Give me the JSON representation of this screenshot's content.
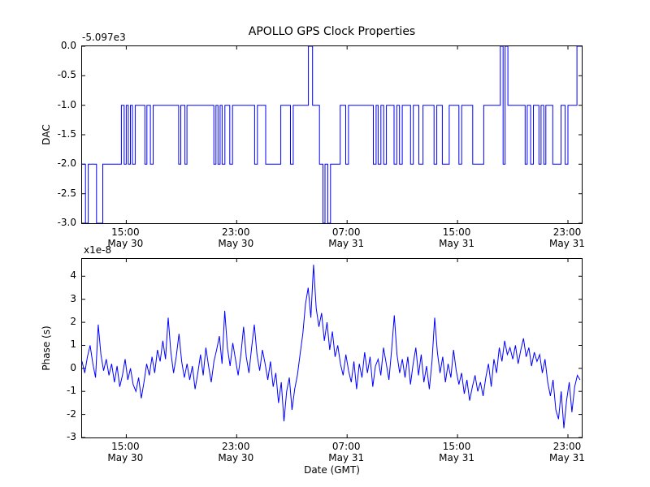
{
  "background": "#ffffff",
  "chart_data": [
    {
      "type": "line",
      "subplot": "top",
      "title": "APOLLO GPS Clock Properties",
      "ylabel": "DAC",
      "y_offset_label": "-5.097e3",
      "line_color": "#0000ff",
      "xlim": [
        0,
        36.2
      ],
      "ylim": [
        -3,
        0
      ],
      "grid": false,
      "legend": "none",
      "yticks": [
        {
          "v": 0,
          "label": "0.0"
        },
        {
          "v": -0.5,
          "label": "-0.5"
        },
        {
          "v": -1,
          "label": "-1.0"
        },
        {
          "v": -1.5,
          "label": "-1.5"
        },
        {
          "v": -2,
          "label": "-2.0"
        },
        {
          "v": -2.5,
          "label": "-2.5"
        },
        {
          "v": -3,
          "label": "-3.0"
        }
      ],
      "xticks": [
        {
          "v": 3.2,
          "time": "15:00",
          "date": "May 30"
        },
        {
          "v": 11.2,
          "time": "23:00",
          "date": "May 30"
        },
        {
          "v": 19.2,
          "time": "07:00",
          "date": "May 31"
        },
        {
          "v": 27.2,
          "time": "15:00",
          "date": "May 31"
        },
        {
          "v": 35.2,
          "time": "23:00",
          "date": "May 31"
        }
      ],
      "step_points": [
        [
          0.0,
          -2
        ],
        [
          0.25,
          -3
        ],
        [
          0.45,
          -2
        ],
        [
          1.05,
          -3
        ],
        [
          1.5,
          -2
        ],
        [
          2.85,
          -1
        ],
        [
          3.05,
          -2
        ],
        [
          3.2,
          -1
        ],
        [
          3.35,
          -2
        ],
        [
          3.5,
          -1
        ],
        [
          3.65,
          -2
        ],
        [
          3.85,
          -1
        ],
        [
          4.55,
          -2
        ],
        [
          4.7,
          -1
        ],
        [
          4.95,
          -2
        ],
        [
          5.15,
          -1
        ],
        [
          7.0,
          -2
        ],
        [
          7.15,
          -1
        ],
        [
          7.45,
          -2
        ],
        [
          7.6,
          -1
        ],
        [
          9.55,
          -2
        ],
        [
          9.7,
          -1
        ],
        [
          9.85,
          -2
        ],
        [
          10.0,
          -1
        ],
        [
          10.15,
          -2
        ],
        [
          10.35,
          -1
        ],
        [
          10.7,
          -2
        ],
        [
          10.9,
          -1
        ],
        [
          12.5,
          -2
        ],
        [
          12.7,
          -1
        ],
        [
          13.3,
          -2
        ],
        [
          14.4,
          -1
        ],
        [
          15.1,
          -2
        ],
        [
          15.3,
          -1
        ],
        [
          16.4,
          0
        ],
        [
          16.7,
          -1
        ],
        [
          17.2,
          -2
        ],
        [
          17.45,
          -3
        ],
        [
          17.6,
          -2
        ],
        [
          17.8,
          -3
        ],
        [
          18.0,
          -2
        ],
        [
          18.7,
          -1
        ],
        [
          19.1,
          -2
        ],
        [
          19.3,
          -1
        ],
        [
          21.1,
          -2
        ],
        [
          21.3,
          -1
        ],
        [
          21.45,
          -2
        ],
        [
          21.65,
          -1
        ],
        [
          21.85,
          -2
        ],
        [
          22.05,
          -1
        ],
        [
          22.6,
          -2
        ],
        [
          22.8,
          -1
        ],
        [
          23.0,
          -2
        ],
        [
          23.2,
          -1
        ],
        [
          23.8,
          -2
        ],
        [
          24.0,
          -1
        ],
        [
          24.4,
          -2
        ],
        [
          24.7,
          -1
        ],
        [
          25.5,
          -2
        ],
        [
          25.7,
          -1
        ],
        [
          26.1,
          -2
        ],
        [
          26.6,
          -1
        ],
        [
          27.3,
          -2
        ],
        [
          27.5,
          -1
        ],
        [
          28.3,
          -2
        ],
        [
          29.1,
          -1
        ],
        [
          30.3,
          0
        ],
        [
          30.5,
          -2
        ],
        [
          30.65,
          0
        ],
        [
          30.85,
          -1
        ],
        [
          32.1,
          -2
        ],
        [
          32.25,
          -1
        ],
        [
          32.5,
          -2
        ],
        [
          32.7,
          -1
        ],
        [
          33.1,
          -2
        ],
        [
          33.25,
          -1
        ],
        [
          33.45,
          -2
        ],
        [
          33.6,
          -1
        ],
        [
          34.1,
          -2
        ],
        [
          34.7,
          -1
        ],
        [
          35.0,
          -2
        ],
        [
          35.2,
          -1
        ],
        [
          35.85,
          0
        ]
      ]
    },
    {
      "type": "line",
      "subplot": "bottom",
      "ylabel": "Phase (s)",
      "xlabel": "Date (GMT)",
      "scale_label": "x1e-8",
      "line_color": "#0000ff",
      "xlim": [
        0,
        36.2
      ],
      "ylim": [
        -3,
        4.75
      ],
      "grid": false,
      "legend": "none",
      "t0": 0,
      "dt": 0.195,
      "yticks": [
        {
          "v": 4,
          "label": "4"
        },
        {
          "v": 3,
          "label": "3"
        },
        {
          "v": 2,
          "label": "2"
        },
        {
          "v": 1,
          "label": "1"
        },
        {
          "v": 0,
          "label": "0"
        },
        {
          "v": -1,
          "label": "-1"
        },
        {
          "v": -2,
          "label": "-2"
        },
        {
          "v": -3,
          "label": "-3"
        }
      ],
      "xticks": [
        {
          "v": 3.2,
          "time": "15:00",
          "date": "May 30"
        },
        {
          "v": 11.2,
          "time": "23:00",
          "date": "May 30"
        },
        {
          "v": 19.2,
          "time": "07:00",
          "date": "May 31"
        },
        {
          "v": 27.2,
          "time": "15:00",
          "date": "May 31"
        },
        {
          "v": 35.2,
          "time": "23:00",
          "date": "May 31"
        }
      ],
      "values": [
        0.3,
        -0.2,
        0.5,
        1.0,
        0.2,
        -0.4,
        1.9,
        0.6,
        -0.1,
        0.4,
        -0.3,
        0.2,
        -0.6,
        0.1,
        -0.8,
        -0.3,
        0.4,
        -0.5,
        0.0,
        -0.7,
        -1.0,
        -0.4,
        -1.3,
        -0.6,
        0.2,
        -0.3,
        0.5,
        -0.2,
        0.8,
        0.3,
        1.2,
        0.4,
        2.2,
        0.7,
        -0.2,
        0.5,
        1.5,
        0.3,
        -0.4,
        0.2,
        -0.5,
        0.1,
        -0.9,
        -0.2,
        0.6,
        -0.3,
        0.9,
        0.1,
        -0.6,
        0.3,
        0.8,
        1.4,
        0.2,
        2.5,
        0.9,
        0.1,
        1.1,
        0.4,
        -0.3,
        0.6,
        1.8,
        0.5,
        -0.2,
        0.9,
        1.9,
        0.6,
        -0.1,
        0.8,
        0.2,
        -0.5,
        0.3,
        -0.8,
        -0.2,
        -1.5,
        -0.6,
        -2.3,
        -1.0,
        -0.4,
        -1.8,
        -0.9,
        -0.3,
        0.6,
        1.5,
        2.8,
        3.5,
        2.2,
        4.5,
        2.6,
        1.8,
        2.4,
        1.2,
        2.0,
        0.8,
        1.6,
        0.5,
        1.0,
        0.2,
        -0.3,
        0.6,
        -0.1,
        -0.6,
        0.3,
        -0.9,
        0.2,
        -0.4,
        0.7,
        -0.2,
        0.5,
        -0.8,
        0.1,
        0.4,
        -0.3,
        0.9,
        0.2,
        -0.5,
        0.8,
        2.3,
        0.6,
        -0.2,
        0.4,
        -0.4,
        0.5,
        -0.7,
        0.2,
        0.9,
        -0.3,
        0.6,
        -0.6,
        0.1,
        -0.9,
        0.3,
        2.2,
        0.7,
        -0.2,
        0.5,
        -0.6,
        0.2,
        -0.4,
        0.8,
        -0.1,
        -0.7,
        -0.2,
        -1.1,
        -0.5,
        -1.4,
        -0.8,
        -0.3,
        -1.0,
        -0.6,
        -1.2,
        -0.4,
        0.2,
        -0.8,
        0.4,
        -0.2,
        0.9,
        0.3,
        1.2,
        0.6,
        0.9,
        0.4,
        1.0,
        0.2,
        0.8,
        1.3,
        0.5,
        0.9,
        0.1,
        0.7,
        0.3,
        0.6,
        -0.2,
        0.4,
        -0.6,
        -1.2,
        -0.5,
        -1.8,
        -2.2,
        -1.0,
        -2.6,
        -1.4,
        -0.6,
        -1.9,
        -0.8,
        -0.3,
        -0.5
      ]
    }
  ]
}
